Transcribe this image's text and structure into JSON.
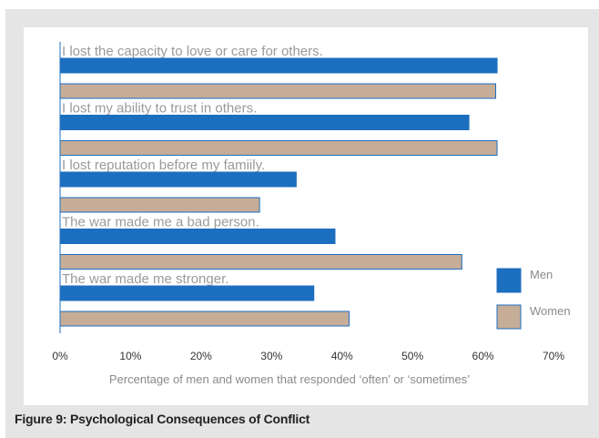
{
  "figure": {
    "caption": "Figure 9: Psychological Consequences of Conflict"
  },
  "colors": {
    "men": "#1c6fbf",
    "women": "#c6ad98",
    "men_border": "#1c6fbf",
    "women_border": "#1c6fbf",
    "frame_background": "#e5e5e5",
    "axis": "#1c6fbf"
  },
  "chart_data": {
    "type": "bar",
    "orientation": "horizontal",
    "categories": [
      "I lost the capacity to love or care for others.",
      "I lost my ability to trust in others.",
      "I lost reputation before my famiily.",
      "The war made me a bad person.",
      "The war made me stronger."
    ],
    "series": [
      {
        "name": "Men",
        "values": [
          62,
          58,
          33.5,
          39,
          36
        ]
      },
      {
        "name": "Women",
        "values": [
          61.8,
          62,
          28.3,
          57,
          41
        ]
      }
    ],
    "xlabel": "Percentage of men and women that responded ‘often’ or ‘sometimes’",
    "ylabel": "",
    "xlim": [
      0,
      70
    ],
    "x_ticks": [
      "0%",
      "10%",
      "20%",
      "30%",
      "40%",
      "50%",
      "60%",
      "70%"
    ],
    "grid": false,
    "legend_position": "right"
  }
}
